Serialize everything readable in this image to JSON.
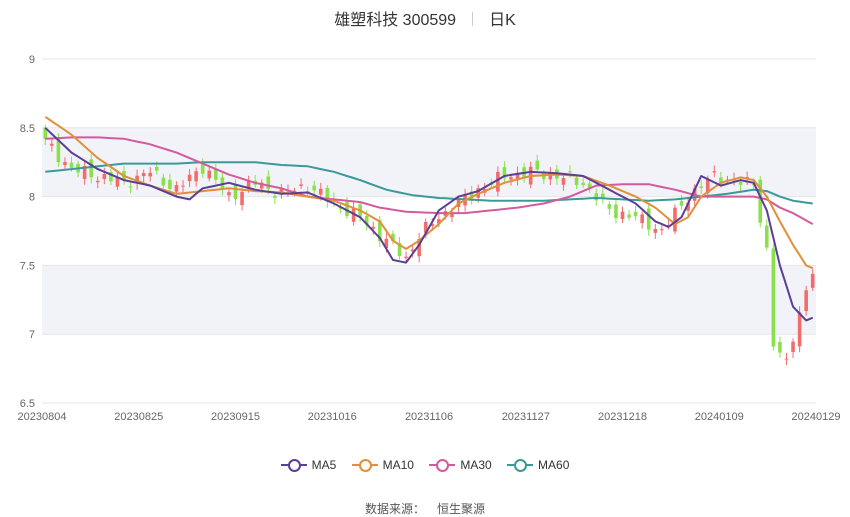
{
  "header": {
    "stock_name_code": "雄塑科技 300599",
    "period": "日K"
  },
  "source": {
    "label": "数据来源：",
    "provider": "恒生聚源"
  },
  "colors": {
    "up": "#f36c6c",
    "down": "#8ae04a",
    "ma5": "#5b3e96",
    "ma10": "#e08f3b",
    "ma30": "#d45a9e",
    "ma60": "#3a9a9a",
    "band": "#f2f3f8",
    "grid": "#e6e6e6"
  },
  "chart_data": {
    "type": "candlestick",
    "ylim": [
      6.5,
      9
    ],
    "yticks": [
      "6.5",
      "7",
      "7.5",
      "8",
      "8.5",
      "9"
    ],
    "xticks": [
      "20230804",
      "20230825",
      "20230915",
      "20231016",
      "20231106",
      "20231127",
      "20231218",
      "20240109",
      "20240129"
    ],
    "legend": [
      "MA5",
      "MA10",
      "MA30",
      "MA60"
    ],
    "legend_position": "bottom",
    "n_sessions": 118,
    "close_anchors": [
      [
        0,
        8.4
      ],
      [
        4,
        8.2
      ],
      [
        8,
        8.15
      ],
      [
        12,
        8.1
      ],
      [
        16,
        8.18
      ],
      [
        20,
        8.05
      ],
      [
        24,
        8.22
      ],
      [
        28,
        8.0
      ],
      [
        32,
        8.1
      ],
      [
        36,
        8.02
      ],
      [
        40,
        8.08
      ],
      [
        44,
        7.95
      ],
      [
        48,
        7.85
      ],
      [
        52,
        7.68
      ],
      [
        55,
        7.55
      ],
      [
        57,
        7.72
      ],
      [
        60,
        7.85
      ],
      [
        63,
        7.95
      ],
      [
        66,
        8.05
      ],
      [
        70,
        8.15
      ],
      [
        74,
        8.18
      ],
      [
        78,
        8.15
      ],
      [
        82,
        8.1
      ],
      [
        86,
        7.9
      ],
      [
        90,
        7.85
      ],
      [
        94,
        7.75
      ],
      [
        98,
        8.0
      ],
      [
        102,
        8.15
      ],
      [
        106,
        8.1
      ],
      [
        108,
        8.1
      ],
      [
        110,
        7.6
      ],
      [
        111,
        6.92
      ],
      [
        112,
        6.85
      ],
      [
        113,
        6.8
      ],
      [
        114,
        7.0
      ],
      [
        115,
        7.15
      ],
      [
        116,
        7.3
      ],
      [
        117,
        7.45
      ]
    ],
    "ma_anchors": {
      "MA5": [
        [
          0,
          8.5
        ],
        [
          4,
          8.32
        ],
        [
          8,
          8.2
        ],
        [
          12,
          8.12
        ],
        [
          16,
          8.08
        ],
        [
          20,
          8.0
        ],
        [
          22,
          7.98
        ],
        [
          24,
          8.06
        ],
        [
          28,
          8.1
        ],
        [
          32,
          8.05
        ],
        [
          36,
          8.02
        ],
        [
          40,
          8.03
        ],
        [
          44,
          7.95
        ],
        [
          48,
          7.85
        ],
        [
          51,
          7.7
        ],
        [
          53,
          7.54
        ],
        [
          55,
          7.52
        ],
        [
          57,
          7.65
        ],
        [
          60,
          7.9
        ],
        [
          63,
          8.0
        ],
        [
          66,
          8.04
        ],
        [
          70,
          8.15
        ],
        [
          74,
          8.18
        ],
        [
          78,
          8.17
        ],
        [
          82,
          8.15
        ],
        [
          86,
          8.05
        ],
        [
          90,
          7.95
        ],
        [
          93,
          7.82
        ],
        [
          95,
          7.78
        ],
        [
          97,
          7.85
        ],
        [
          100,
          8.15
        ],
        [
          103,
          8.08
        ],
        [
          106,
          8.12
        ],
        [
          108,
          8.1
        ],
        [
          110,
          7.9
        ],
        [
          112,
          7.5
        ],
        [
          114,
          7.2
        ],
        [
          116,
          7.1
        ],
        [
          117,
          7.12
        ]
      ],
      "MA10": [
        [
          0,
          8.58
        ],
        [
          4,
          8.45
        ],
        [
          8,
          8.28
        ],
        [
          12,
          8.15
        ],
        [
          16,
          8.08
        ],
        [
          20,
          8.02
        ],
        [
          24,
          8.04
        ],
        [
          28,
          8.06
        ],
        [
          32,
          8.04
        ],
        [
          36,
          8.03
        ],
        [
          40,
          8.0
        ],
        [
          44,
          7.97
        ],
        [
          48,
          7.9
        ],
        [
          51,
          7.82
        ],
        [
          53,
          7.68
        ],
        [
          55,
          7.62
        ],
        [
          57,
          7.68
        ],
        [
          60,
          7.8
        ],
        [
          63,
          7.95
        ],
        [
          66,
          8.02
        ],
        [
          70,
          8.1
        ],
        [
          74,
          8.15
        ],
        [
          78,
          8.16
        ],
        [
          82,
          8.15
        ],
        [
          86,
          8.08
        ],
        [
          90,
          8.0
        ],
        [
          93,
          7.92
        ],
        [
          96,
          7.8
        ],
        [
          98,
          7.85
        ],
        [
          100,
          8.0
        ],
        [
          103,
          8.1
        ],
        [
          106,
          8.14
        ],
        [
          108,
          8.12
        ],
        [
          110,
          8.0
        ],
        [
          112,
          7.82
        ],
        [
          114,
          7.65
        ],
        [
          116,
          7.5
        ],
        [
          117,
          7.48
        ]
      ],
      "MA30": [
        [
          0,
          8.42
        ],
        [
          4,
          8.43
        ],
        [
          8,
          8.43
        ],
        [
          12,
          8.42
        ],
        [
          16,
          8.38
        ],
        [
          20,
          8.32
        ],
        [
          24,
          8.24
        ],
        [
          28,
          8.16
        ],
        [
          32,
          8.1
        ],
        [
          36,
          8.06
        ],
        [
          40,
          8.0
        ],
        [
          44,
          7.98
        ],
        [
          48,
          7.96
        ],
        [
          51,
          7.92
        ],
        [
          55,
          7.89
        ],
        [
          60,
          7.88
        ],
        [
          64,
          7.88
        ],
        [
          68,
          7.9
        ],
        [
          72,
          7.92
        ],
        [
          76,
          7.95
        ],
        [
          80,
          8.0
        ],
        [
          84,
          8.08
        ],
        [
          88,
          8.09
        ],
        [
          92,
          8.09
        ],
        [
          96,
          8.05
        ],
        [
          100,
          8.0
        ],
        [
          104,
          8.0
        ],
        [
          108,
          8.0
        ],
        [
          110,
          7.98
        ],
        [
          112,
          7.92
        ],
        [
          114,
          7.88
        ],
        [
          117,
          7.8
        ]
      ],
      "MA60": [
        [
          0,
          8.18
        ],
        [
          4,
          8.2
        ],
        [
          8,
          8.22
        ],
        [
          12,
          8.24
        ],
        [
          16,
          8.24
        ],
        [
          20,
          8.24
        ],
        [
          24,
          8.25
        ],
        [
          28,
          8.25
        ],
        [
          32,
          8.25
        ],
        [
          36,
          8.23
        ],
        [
          40,
          8.22
        ],
        [
          44,
          8.18
        ],
        [
          48,
          8.12
        ],
        [
          52,
          8.05
        ],
        [
          56,
          8.01
        ],
        [
          60,
          7.99
        ],
        [
          64,
          7.98
        ],
        [
          68,
          7.97
        ],
        [
          72,
          7.97
        ],
        [
          76,
          7.97
        ],
        [
          80,
          7.98
        ],
        [
          84,
          7.99
        ],
        [
          88,
          7.98
        ],
        [
          92,
          7.97
        ],
        [
          96,
          7.98
        ],
        [
          100,
          8.0
        ],
        [
          104,
          8.02
        ],
        [
          108,
          8.05
        ],
        [
          110,
          8.04
        ],
        [
          112,
          8.0
        ],
        [
          114,
          7.97
        ],
        [
          117,
          7.95
        ]
      ]
    }
  }
}
